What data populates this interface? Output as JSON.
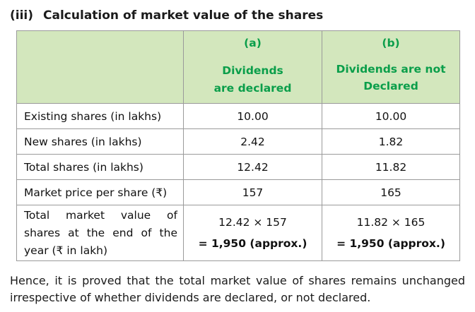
{
  "heading": {
    "number": "(iii)",
    "title": "Calculation of market value of the shares"
  },
  "table": {
    "columns": [
      {
        "letter": "(a)",
        "label_line1": "Dividends",
        "label_line2": "are declared"
      },
      {
        "letter": "(b)",
        "label_line1": "Dividends are not",
        "label_line2": "Declared"
      }
    ],
    "rows": [
      {
        "label": "Existing shares (in lakhs)",
        "a": "10.00",
        "b": "10.00"
      },
      {
        "label": "New shares (in lakhs)",
        "a": "2.42",
        "b": "1.82"
      },
      {
        "label": "Total shares (in lakhs)",
        "a": "12.42",
        "b": "11.82"
      },
      {
        "label": "Market price per share (₹)",
        "a": "157",
        "b": "165"
      }
    ],
    "total_row": {
      "label": "Total market value of shares at the end of the year (₹ in lakh)",
      "a_calc": "12.42 × 157",
      "a_result": "= 1,950 (approx.)",
      "b_calc": "11.82 × 165",
      "b_result": "= 1,950 (approx.)"
    }
  },
  "conclusion": "Hence, it is proved that the total market value of shares remains unchanged irrespective of whether dividends are declared, or not declared.",
  "colors": {
    "header_fill": "#d3e7bd",
    "header_text": "#0a9e4a",
    "border": "#9a9a9a"
  }
}
